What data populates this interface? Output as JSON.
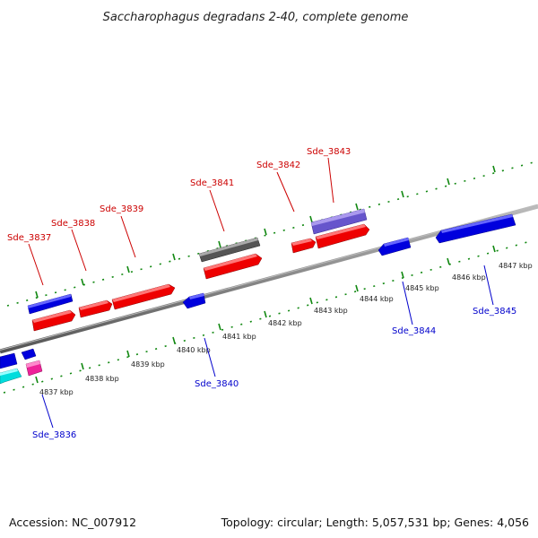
{
  "title": "Saccharophagus degradans 2-40, complete genome",
  "footer": {
    "accession": "Accession: NC_007912",
    "summary": "Topology: circular; Length: 5,057,531 bp; Genes: 4,056"
  },
  "scale": [
    "4837 kbp",
    "4838 kbp",
    "4839 kbp",
    "4840 kbp",
    "4841 kbp",
    "4842 kbp",
    "4843 kbp",
    "4844 kbp",
    "4845 kbp",
    "4846 kbp",
    "4847 kbp"
  ],
  "genes_forward": [
    "Sde_3837",
    "Sde_3838",
    "Sde_3839",
    "Sde_3841",
    "Sde_3842",
    "Sde_3843"
  ],
  "genes_reverse": [
    "Sde_3836",
    "Sde_3840",
    "Sde_3844",
    "Sde_3845"
  ],
  "colors": {
    "red": "#ee0000",
    "blue": "#0000dd",
    "grey": "#555555",
    "purple": "#6655cc",
    "cyan": "#00dddd",
    "magenta": "#ee2299",
    "backbone": "#888888",
    "ticks": "#118811"
  }
}
